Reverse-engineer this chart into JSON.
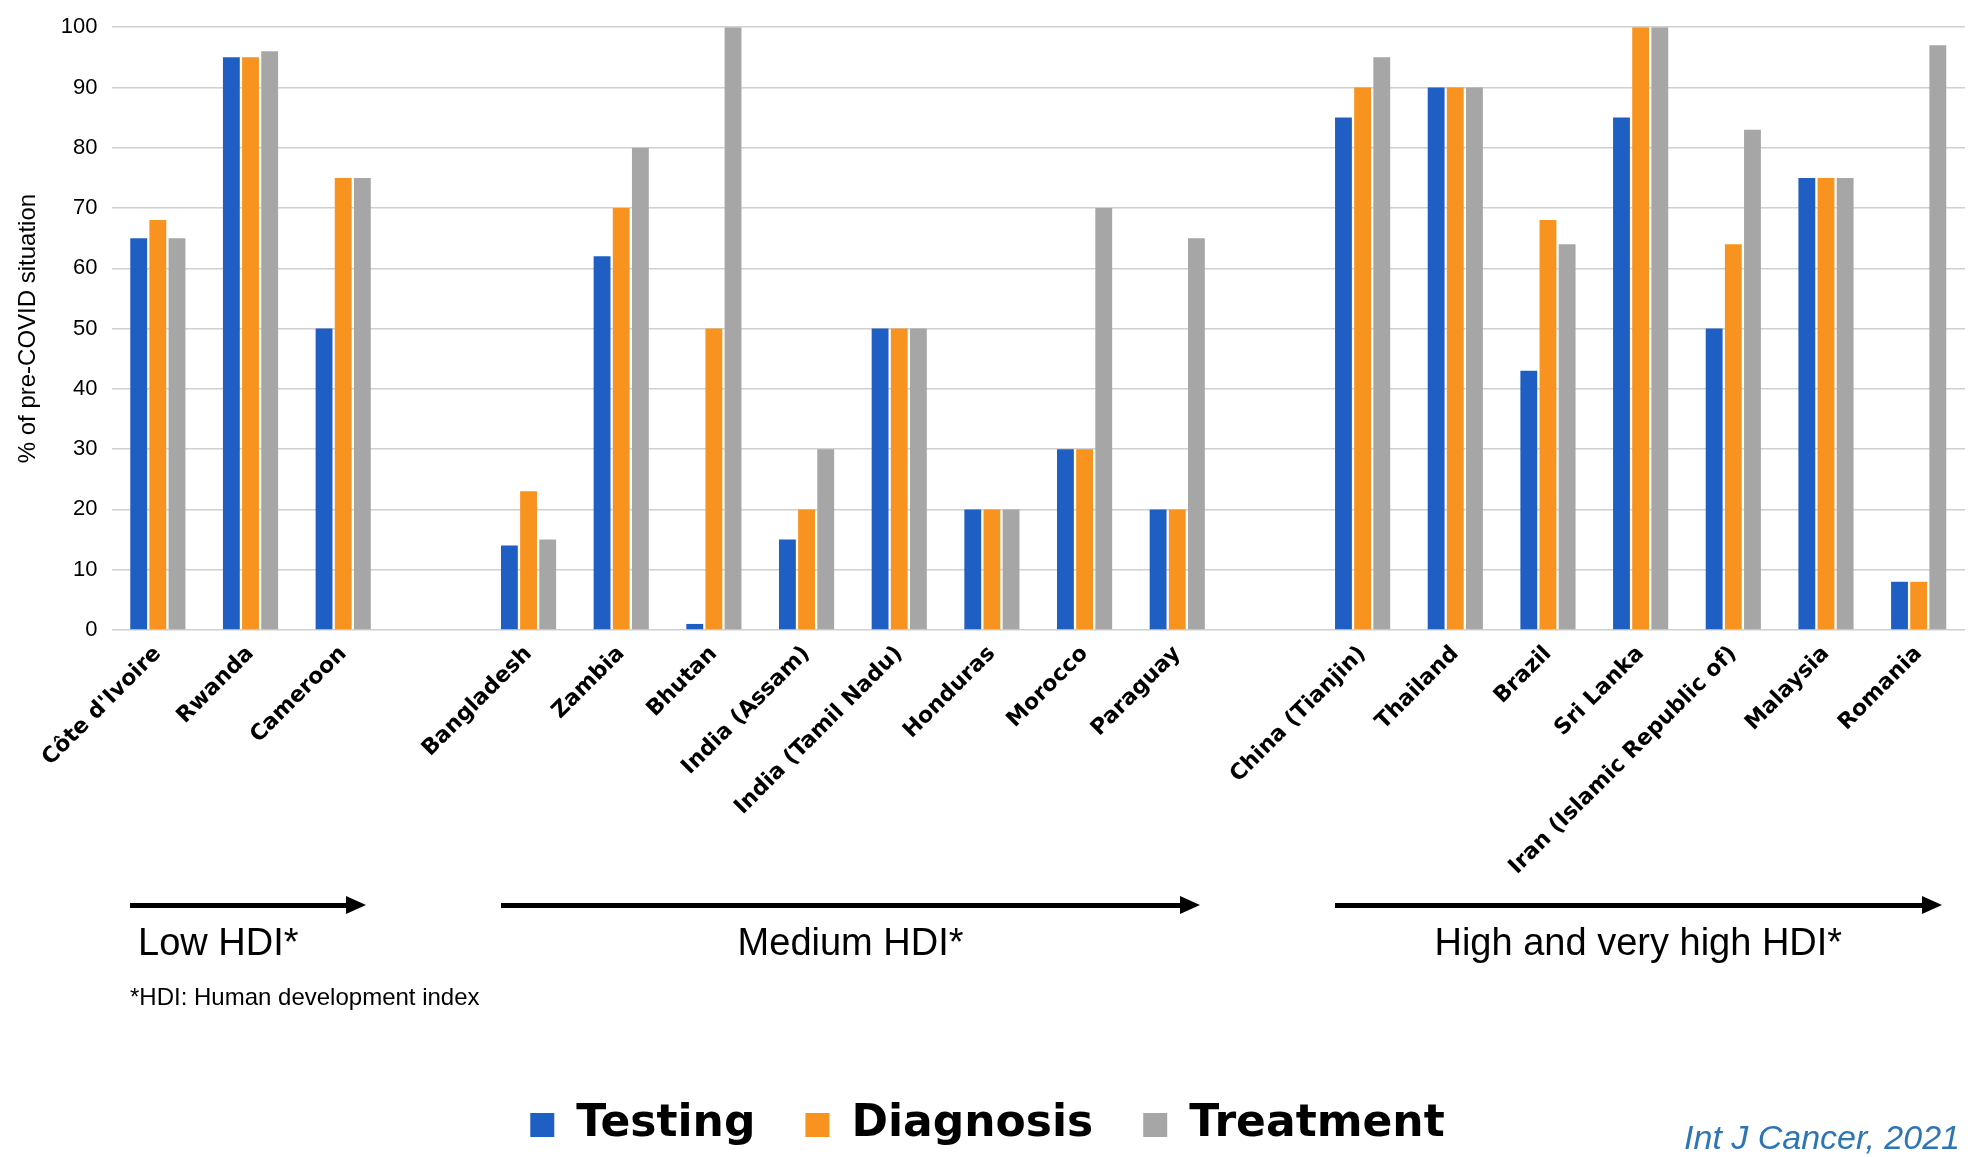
{
  "chart_data": {
    "type": "bar",
    "ylabel": "% of pre-COVID situation",
    "categories": [
      "Côte d'Ivoire",
      "Rwanda",
      "Cameroon",
      null,
      "Bangladesh",
      "Zambia",
      "Bhutan",
      "India (Assam)",
      "India (Tamil Nadu)",
      "Honduras",
      "Morocco",
      "Paraguay",
      null,
      "China (Tianjin)",
      "Thailand",
      "Brazil",
      "Sri Lanka",
      "Iran (Islamic Republic of)",
      "Malaysia",
      "Romania"
    ],
    "series": [
      {
        "name": "Testing",
        "color": "#1f5fc4",
        "values": [
          65,
          95,
          50,
          null,
          14,
          62,
          1,
          15,
          50,
          20,
          30,
          20,
          null,
          85,
          90,
          43,
          85,
          50,
          75,
          8
        ]
      },
      {
        "name": "Diagnosis",
        "color": "#f7931e",
        "values": [
          68,
          95,
          75,
          null,
          23,
          70,
          50,
          20,
          50,
          20,
          30,
          20,
          null,
          90,
          90,
          68,
          100,
          64,
          75,
          8
        ]
      },
      {
        "name": "Treatment",
        "color": "#a6a6a6",
        "values": [
          65,
          96,
          75,
          null,
          15,
          80,
          100,
          30,
          50,
          20,
          70,
          65,
          null,
          95,
          90,
          64,
          100,
          83,
          75,
          97
        ]
      }
    ],
    "ylim": [
      0,
      100
    ],
    "yticks": [
      0,
      10,
      20,
      30,
      40,
      50,
      60,
      70,
      80,
      90,
      100
    ],
    "grid": "y",
    "legend": "bottom",
    "annotations": [
      "Low HDI*",
      "Medium HDI*",
      "High and very high HDI*",
      "*HDI: Human development index",
      "Int J Cancer, 2021"
    ]
  }
}
